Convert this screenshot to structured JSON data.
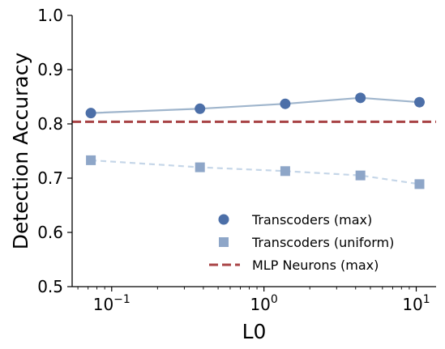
{
  "chart_data": {
    "type": "line",
    "xlabel": "L0",
    "ylabel": "Detection Accuracy",
    "xscale": "log",
    "xlim": [
      0.055,
      13.5
    ],
    "ylim": [
      0.5,
      1.0
    ],
    "grid": false,
    "legend_position": "bottom-right",
    "yticks": [
      {
        "value": 0.5,
        "label": "0.5"
      },
      {
        "value": 0.6,
        "label": "0.6"
      },
      {
        "value": 0.7,
        "label": "0.7"
      },
      {
        "value": 0.8,
        "label": "0.8"
      },
      {
        "value": 0.9,
        "label": "0.9"
      },
      {
        "value": 1.0,
        "label": "1.0"
      }
    ],
    "xticks": [
      {
        "value": 0.1,
        "base": "10",
        "exp": "−1"
      },
      {
        "value": 1,
        "base": "10",
        "exp": "0"
      },
      {
        "value": 10,
        "base": "10",
        "exp": "1"
      }
    ],
    "series": [
      {
        "name": "Transcoders (max)",
        "marker": "circle",
        "line_style": "solid",
        "marker_color": "#4c6fa8",
        "line_color": "#9fb5cc",
        "x": [
          0.073,
          0.38,
          1.38,
          4.3,
          10.5
        ],
        "y": [
          0.82,
          0.828,
          0.837,
          0.848,
          0.84
        ]
      },
      {
        "name": "Transcoders (uniform)",
        "marker": "square",
        "line_style": "dashed",
        "marker_color": "#8ea6c8",
        "line_color": "#c5d6e8",
        "x": [
          0.073,
          0.38,
          1.38,
          4.3,
          10.5
        ],
        "y": [
          0.733,
          0.72,
          0.713,
          0.705,
          0.689
        ]
      },
      {
        "name": "MLP Neurons (max)",
        "marker": "none",
        "line_style": "dashed",
        "line_color": "#a84345",
        "hline": 0.804
      }
    ]
  }
}
